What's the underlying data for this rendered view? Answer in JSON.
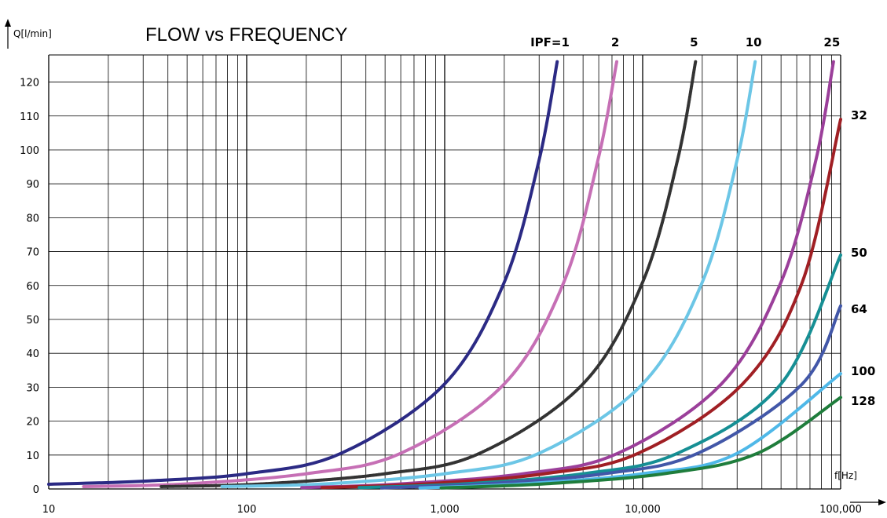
{
  "chart_data": {
    "type": "line",
    "title": "FLOW vs FREQUENCY",
    "ylabel": "Q[l/min]",
    "xlabel": "f[Hz]",
    "xscale": "log",
    "xlim": [
      10,
      100000
    ],
    "ylim": [
      0,
      128
    ],
    "grid": true,
    "x_tick_labels": [
      "10",
      "100",
      "1,000",
      "10,000",
      "100,000"
    ],
    "x_ticks": [
      10,
      100,
      1000,
      10000,
      100000
    ],
    "y_ticks": [
      0,
      10,
      20,
      30,
      40,
      50,
      60,
      70,
      80,
      90,
      100,
      110,
      120
    ],
    "series": [
      {
        "name": "IPF=1",
        "label": "IPF=1",
        "color": "#2b2a84",
        "dashed": false,
        "x": [
          10,
          30,
          100,
          300,
          1000,
          2000,
          3000,
          3700
        ],
        "y": [
          1.4,
          2.3,
          4.5,
          10.5,
          31,
          61,
          97,
          126
        ]
      },
      {
        "name": "2",
        "label": "2",
        "color": "#c66fb5",
        "dashed": false,
        "x": [
          15,
          50,
          200,
          600,
          2000,
          4000,
          6000,
          7400
        ],
        "y": [
          0.7,
          1.5,
          4.5,
          10.5,
          31,
          61,
          98,
          126
        ]
      },
      {
        "name": "5",
        "label": "5",
        "color": "#333333",
        "dashed": true,
        "x": [
          37,
          120,
          500,
          1500,
          5000,
          10000,
          15000,
          18500
        ],
        "y": [
          0.7,
          1.5,
          4.5,
          10.5,
          31,
          61,
          97,
          126
        ]
      },
      {
        "name": "10",
        "label": "10",
        "color": "#6cc6e6",
        "dashed": false,
        "x": [
          75,
          250,
          1000,
          3000,
          10000,
          20000,
          30000,
          37000
        ],
        "y": [
          0.7,
          1.5,
          4.5,
          10.5,
          31,
          61,
          97,
          126
        ]
      },
      {
        "name": "25",
        "label": "25",
        "color": "#9b3f9a",
        "dashed": false,
        "x": [
          190,
          600,
          2500,
          7500,
          25000,
          50000,
          75000,
          92000
        ],
        "y": [
          0.4,
          1.5,
          4.5,
          10.5,
          31,
          61,
          97,
          126
        ]
      },
      {
        "name": "32",
        "label": "32",
        "color": "#a01f24",
        "dashed": false,
        "x": [
          240,
          800,
          3200,
          9500,
          32000,
          64000,
          100000
        ],
        "y": [
          0.4,
          1.5,
          4.5,
          10.5,
          31,
          61,
          109
        ]
      },
      {
        "name": "50",
        "label": "50",
        "color": "#168f94",
        "dashed": false,
        "x": [
          370,
          1250,
          5000,
          15000,
          50000,
          100000
        ],
        "y": [
          0.4,
          1.5,
          4.5,
          10.5,
          31,
          69
        ]
      },
      {
        "name": "64",
        "label": "64",
        "color": "#4257a8",
        "dashed": false,
        "x": [
          480,
          1600,
          6400,
          19000,
          64000,
          100000
        ],
        "y": [
          0.3,
          1.5,
          4.5,
          10.5,
          31,
          54
        ]
      },
      {
        "name": "100",
        "label": "100",
        "color": "#4fb8e8",
        "dashed": false,
        "x": [
          750,
          2500,
          10000,
          30000,
          100000
        ],
        "y": [
          0.3,
          1.5,
          4.5,
          10.5,
          34
        ]
      },
      {
        "name": "128",
        "label": "128",
        "color": "#1f7d3c",
        "dashed": false,
        "x": [
          960,
          3200,
          12800,
          38000,
          100000
        ],
        "y": [
          0.3,
          1.5,
          4.5,
          10.5,
          27
        ]
      }
    ]
  }
}
